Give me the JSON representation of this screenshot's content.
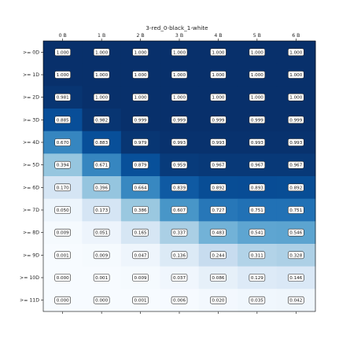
{
  "chart_data": {
    "type": "heatmap",
    "title": "3-red_0-black_1-white",
    "x_categories": [
      "0 B",
      "1 B",
      "2 B",
      "3 B",
      "4 B",
      "5 B",
      "6 B"
    ],
    "y_categories": [
      ">= 0D",
      ">= 1D",
      ">= 2D",
      ">= 3D",
      ">= 4D",
      ">= 5D",
      ">= 6D",
      ">= 7D",
      ">= 8D",
      ">= 9D",
      ">= 10D",
      ">= 11D"
    ],
    "values": [
      [
        "1.000",
        "1.000",
        "1.000",
        "1.000",
        "1.000",
        "1.000",
        "1.000"
      ],
      [
        "1.000",
        "1.000",
        "1.000",
        "1.000",
        "1.000",
        "1.000",
        "1.000"
      ],
      [
        "0.981",
        "1.000",
        "1.000",
        "1.000",
        "1.000",
        "1.000",
        "1.000"
      ],
      [
        "0.885",
        "0.982",
        "0.999",
        "0.999",
        "0.999",
        "0.999",
        "0.999"
      ],
      [
        "0.670",
        "0.883",
        "0.979",
        "0.993",
        "0.993",
        "0.993",
        "0.993"
      ],
      [
        "0.394",
        "0.671",
        "0.879",
        "0.959",
        "0.967",
        "0.967",
        "0.967"
      ],
      [
        "0.170",
        "0.396",
        "0.664",
        "0.839",
        "0.892",
        "0.893",
        "0.892"
      ],
      [
        "0.050",
        "0.173",
        "0.386",
        "0.607",
        "0.727",
        "0.751",
        "0.751"
      ],
      [
        "0.009",
        "0.051",
        "0.165",
        "0.337",
        "0.483",
        "0.541",
        "0.546"
      ],
      [
        "0.001",
        "0.009",
        "0.047",
        "0.136",
        "0.244",
        "0.311",
        "0.328"
      ],
      [
        "0.000",
        "0.001",
        "0.009",
        "0.037",
        "0.086",
        "0.129",
        "0.146"
      ],
      [
        "0.000",
        "0.000",
        "0.001",
        "0.006",
        "0.020",
        "0.035",
        "0.042"
      ]
    ],
    "value_range": [
      0,
      1
    ],
    "colormap": [
      "#f7fbff",
      "#deebf7",
      "#c6dbef",
      "#9ecae1",
      "#6baed6",
      "#4292c6",
      "#2171b5",
      "#08519c",
      "#08306b"
    ],
    "x_axis_position": "top",
    "grid": false,
    "legend": "none"
  }
}
